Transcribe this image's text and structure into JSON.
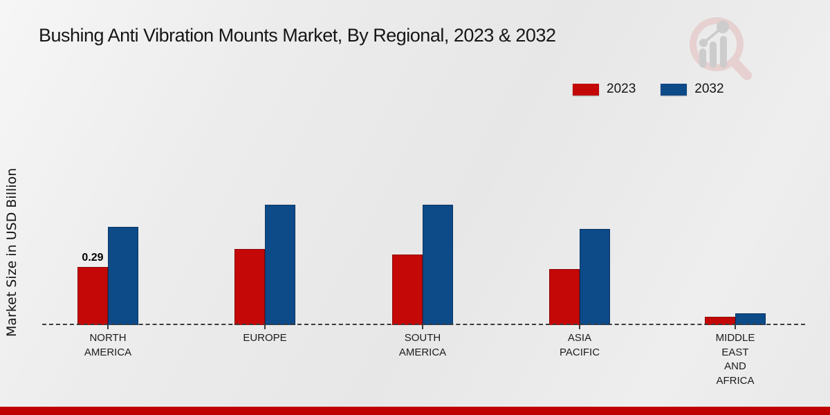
{
  "title": "Bushing Anti Vibration Mounts Market, By Regional, 2023 & 2032",
  "legend": [
    {
      "label": "2023",
      "color": "#c40808"
    },
    {
      "label": "2032",
      "color": "#0d4a88"
    }
  ],
  "chart_data": {
    "type": "bar",
    "title": "Bushing Anti Vibration Mounts Market, By Regional, 2023 & 2032",
    "ylabel": "Market Size in USD Billion",
    "xlabel": "",
    "ylim": [
      0,
      0.65
    ],
    "grid": false,
    "legend_position": "top-right",
    "baseline_style": "dashed",
    "categories": [
      "NORTH AMERICA",
      "EUROPE",
      "SOUTH AMERICA",
      "ASIA PACIFIC",
      "MIDDLE EAST AND AFRICA"
    ],
    "category_lines": [
      "NORTH\nAMERICA",
      "EUROPE",
      "SOUTH\nAMERICA",
      "ASIA\nPACIFIC",
      "MIDDLE\nEAST\nAND\nAFRICA"
    ],
    "series": [
      {
        "name": "2023",
        "color": "#c40808",
        "values": [
          0.29,
          0.38,
          0.35,
          0.28,
          0.04
        ]
      },
      {
        "name": "2032",
        "color": "#0d4a88",
        "values": [
          0.49,
          0.6,
          0.6,
          0.48,
          0.06
        ]
      }
    ],
    "data_labels": [
      {
        "series": "2023",
        "category": "NORTH AMERICA",
        "value": "0.29"
      }
    ]
  },
  "watermark": {
    "name": "magnifier-bar-chart-logo",
    "ring_color": "#e6cccc",
    "bars_color": "#c7c7c7"
  },
  "colors": {
    "footer_stripe": "#c00000",
    "baseline": "#3b3b3b"
  }
}
